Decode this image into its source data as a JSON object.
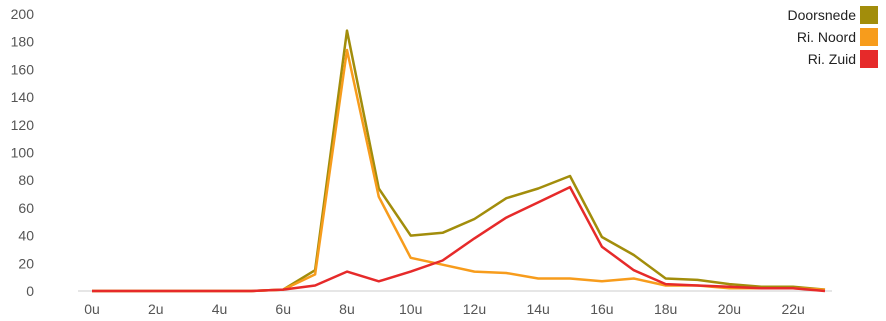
{
  "chart_data": {
    "type": "line",
    "x": [
      0,
      1,
      2,
      3,
      4,
      5,
      6,
      7,
      8,
      9,
      10,
      11,
      12,
      13,
      14,
      15,
      16,
      17,
      18,
      19,
      20,
      21,
      22,
      23
    ],
    "xticks": [
      "0u",
      "2u",
      "4u",
      "6u",
      "8u",
      "10u",
      "12u",
      "14u",
      "16u",
      "18u",
      "20u",
      "22u"
    ],
    "xtick_values": [
      0,
      2,
      4,
      6,
      8,
      10,
      12,
      14,
      16,
      18,
      20,
      22
    ],
    "ylim": [
      0,
      200
    ],
    "yticks": [
      0,
      20,
      40,
      60,
      80,
      100,
      120,
      140,
      160,
      180,
      200
    ],
    "grid": "horizontal-baseline",
    "legend_position": "top-right",
    "series": [
      {
        "name": "Doorsnede",
        "color": "#a28d0b",
        "values": [
          0,
          0,
          0,
          0,
          0,
          0,
          1,
          15,
          188,
          74,
          40,
          42,
          52,
          67,
          74,
          83,
          39,
          26,
          9,
          8,
          5,
          3,
          3,
          1
        ]
      },
      {
        "name": "Ri. Noord",
        "color": "#f79c1c",
        "values": [
          0,
          0,
          0,
          0,
          0,
          0,
          1,
          12,
          174,
          68,
          24,
          19,
          14,
          13,
          9,
          9,
          7,
          9,
          4,
          4,
          2,
          2,
          2,
          1
        ]
      },
      {
        "name": "Ri. Zuid",
        "color": "#e62a2a",
        "values": [
          0,
          0,
          0,
          0,
          0,
          0,
          1,
          4,
          14,
          7,
          14,
          22,
          38,
          53,
          64,
          75,
          32,
          15,
          5,
          4,
          3,
          2,
          2,
          0
        ]
      }
    ]
  }
}
